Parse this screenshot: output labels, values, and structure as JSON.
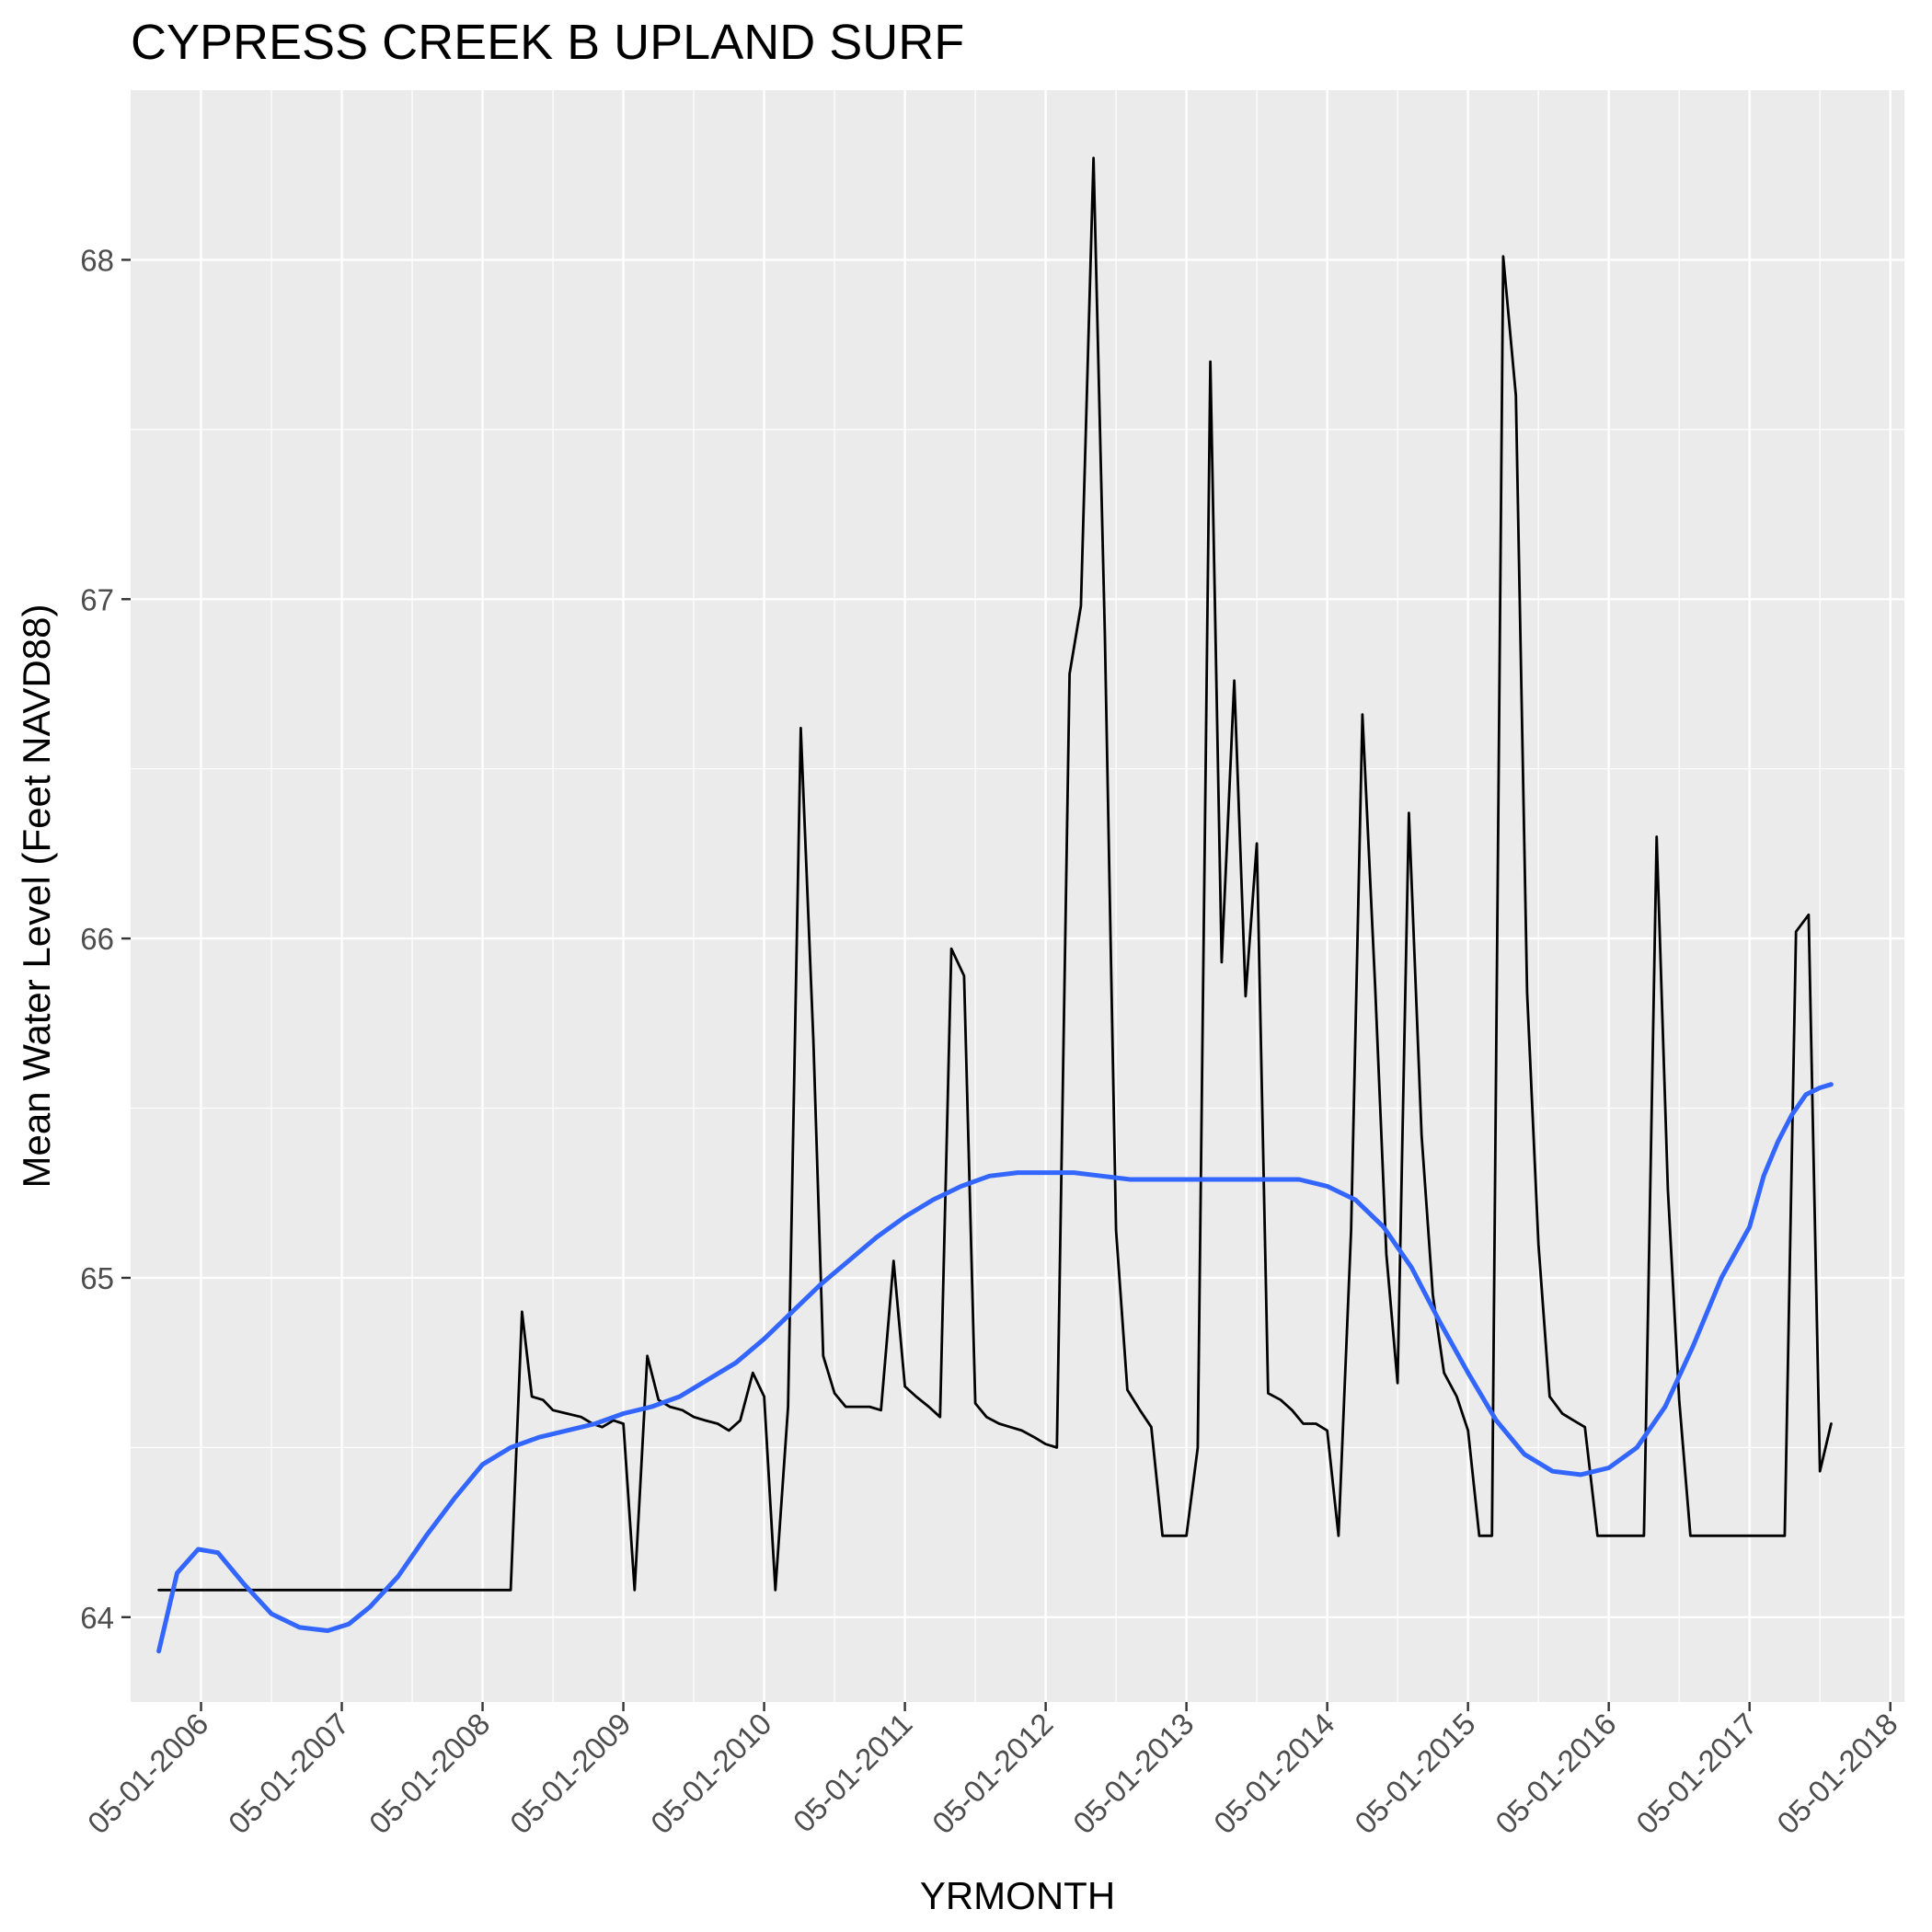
{
  "chart_data": {
    "type": "line",
    "title": "CYPRESS CREEK B UPLAND SURF",
    "xlabel": "YRMONTH",
    "ylabel": "Mean Water Level (Feet NAVD88)",
    "xlim": [
      2005.5,
      2018.1
    ],
    "ylim": [
      63.75,
      68.5
    ],
    "x_tick_values": [
      2006,
      2007,
      2008,
      2009,
      2010,
      2011,
      2012,
      2013,
      2014,
      2015,
      2016,
      2017,
      2018
    ],
    "x_tick_labels": [
      "05-01-2006",
      "05-01-2007",
      "05-01-2008",
      "05-01-2009",
      "05-01-2010",
      "05-01-2011",
      "05-01-2012",
      "05-01-2013",
      "05-01-2014",
      "05-01-2015",
      "05-01-2016",
      "05-01-2017",
      "05-01-2018"
    ],
    "y_ticks": [
      64,
      65,
      66,
      67,
      68
    ],
    "y_tick_labels": [
      "64",
      "65",
      "66",
      "67",
      "68"
    ],
    "grid": true,
    "colors": {
      "panel": "#ebebeb",
      "grid": "#ffffff",
      "observed": "#000000",
      "smooth": "#3366ff"
    },
    "series": [
      {
        "name": "observed",
        "x": [
          2005.7,
          2008.2,
          2008.28,
          2008.35,
          2008.43,
          2008.5,
          2008.6,
          2008.7,
          2008.78,
          2008.85,
          2008.93,
          2009.0,
          2009.08,
          2009.17,
          2009.25,
          2009.33,
          2009.42,
          2009.5,
          2009.58,
          2009.67,
          2009.75,
          2009.83,
          2009.92,
          2010.0,
          2010.08,
          2010.17,
          2010.26,
          2010.35,
          2010.42,
          2010.5,
          2010.58,
          2010.67,
          2010.75,
          2010.83,
          2010.92,
          2011.0,
          2011.08,
          2011.17,
          2011.25,
          2011.33,
          2011.42,
          2011.5,
          2011.58,
          2011.67,
          2011.75,
          2011.83,
          2011.92,
          2012.0,
          2012.08,
          2012.17,
          2012.25,
          2012.34,
          2012.42,
          2012.5,
          2012.58,
          2012.67,
          2012.75,
          2012.83,
          2012.92,
          2013.0,
          2013.08,
          2013.17,
          2013.25,
          2013.34,
          2013.42,
          2013.5,
          2013.58,
          2013.67,
          2013.75,
          2013.83,
          2013.92,
          2014.0,
          2014.08,
          2014.17,
          2014.25,
          2014.34,
          2014.42,
          2014.5,
          2014.58,
          2014.67,
          2014.75,
          2014.83,
          2014.92,
          2015.0,
          2015.08,
          2015.17,
          2015.25,
          2015.34,
          2015.42,
          2015.5,
          2015.58,
          2015.67,
          2015.75,
          2015.83,
          2015.92,
          2016.0,
          2016.08,
          2016.17,
          2016.25,
          2016.34,
          2016.42,
          2016.5,
          2016.58,
          2016.67,
          2016.75,
          2016.83,
          2016.92,
          2017.0,
          2017.08,
          2017.17,
          2017.25,
          2017.33,
          2017.42,
          2017.5,
          2017.58
        ],
        "y": [
          64.08,
          64.08,
          64.9,
          64.65,
          64.64,
          64.61,
          64.6,
          64.59,
          64.57,
          64.56,
          64.58,
          64.57,
          64.08,
          64.77,
          64.64,
          64.62,
          64.61,
          64.59,
          64.58,
          64.57,
          64.55,
          64.58,
          64.72,
          64.65,
          64.08,
          64.62,
          66.62,
          65.7,
          64.77,
          64.66,
          64.62,
          64.62,
          64.62,
          64.61,
          65.05,
          64.68,
          64.65,
          64.62,
          64.59,
          65.97,
          65.89,
          64.63,
          64.59,
          64.57,
          64.56,
          64.55,
          64.53,
          64.51,
          64.5,
          66.78,
          66.98,
          68.3,
          66.9,
          65.14,
          64.67,
          64.61,
          64.56,
          64.24,
          64.24,
          64.24,
          64.5,
          67.7,
          65.93,
          66.76,
          65.83,
          66.28,
          64.66,
          64.64,
          64.61,
          64.57,
          64.57,
          64.55,
          64.24,
          65.14,
          66.66,
          65.86,
          65.07,
          64.69,
          66.37,
          65.42,
          64.95,
          64.72,
          64.65,
          64.55,
          64.24,
          64.24,
          68.01,
          67.6,
          65.84,
          65.1,
          64.65,
          64.6,
          64.58,
          64.56,
          64.24,
          64.24,
          64.24,
          64.24,
          64.24,
          66.3,
          65.26,
          64.64,
          64.24,
          64.24,
          64.24,
          64.24,
          64.24,
          64.24,
          64.24,
          64.24,
          64.24,
          66.02,
          66.07,
          64.43,
          64.57
        ]
      },
      {
        "name": "smooth",
        "x": [
          2005.7,
          2005.83,
          2005.98,
          2006.12,
          2006.3,
          2006.5,
          2006.7,
          2006.9,
          2007.05,
          2007.2,
          2007.4,
          2007.6,
          2007.8,
          2008.0,
          2008.2,
          2008.4,
          2008.6,
          2008.8,
          2009.0,
          2009.2,
          2009.4,
          2009.6,
          2009.8,
          2010.0,
          2010.2,
          2010.4,
          2010.6,
          2010.8,
          2011.0,
          2011.2,
          2011.4,
          2011.6,
          2011.8,
          2012.0,
          2012.2,
          2012.4,
          2012.6,
          2012.8,
          2013.0,
          2013.2,
          2013.4,
          2013.6,
          2013.8,
          2014.0,
          2014.2,
          2014.4,
          2014.6,
          2014.8,
          2015.0,
          2015.2,
          2015.4,
          2015.6,
          2015.8,
          2016.0,
          2016.2,
          2016.4,
          2016.6,
          2016.8,
          2017.0,
          2017.1,
          2017.2,
          2017.3,
          2017.4,
          2017.5,
          2017.58
        ],
        "y": [
          63.9,
          64.13,
          64.2,
          64.19,
          64.1,
          64.01,
          63.97,
          63.96,
          63.98,
          64.03,
          64.12,
          64.24,
          64.35,
          64.45,
          64.5,
          64.53,
          64.55,
          64.57,
          64.6,
          64.62,
          64.65,
          64.7,
          64.75,
          64.82,
          64.9,
          64.98,
          65.05,
          65.12,
          65.18,
          65.23,
          65.27,
          65.3,
          65.31,
          65.31,
          65.31,
          65.3,
          65.29,
          65.29,
          65.29,
          65.29,
          65.29,
          65.29,
          65.29,
          65.27,
          65.23,
          65.15,
          65.03,
          64.87,
          64.72,
          64.58,
          64.48,
          64.43,
          64.42,
          64.44,
          64.5,
          64.62,
          64.8,
          65.0,
          65.15,
          65.3,
          65.4,
          65.48,
          65.54,
          65.56,
          65.57
        ]
      }
    ]
  }
}
